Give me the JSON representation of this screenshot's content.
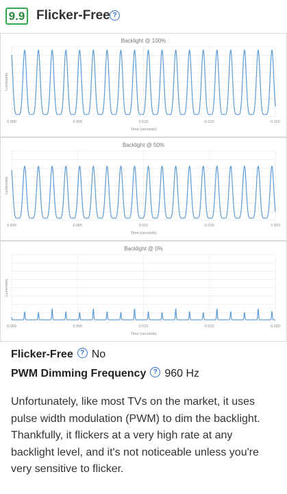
{
  "header": {
    "score": "9.9",
    "title": "Flicker-Free",
    "help_icon": "question-circle-icon"
  },
  "charts_common": {
    "xlabel": "Time (seconds)",
    "ylabel": "Luminosity",
    "x_ticks": [
      "0.000",
      "0.005",
      "0.010",
      "0.015",
      "0.020"
    ],
    "color": "#5b9bd5"
  },
  "chart_data": [
    {
      "type": "line",
      "title": "Backlight @ 100%",
      "xlabel": "Time (seconds)",
      "ylabel": "Luminosity",
      "xlim": [
        0,
        0.02
      ],
      "ylim": [
        0,
        1
      ],
      "series": [
        {
          "pulse_frequency_hz": 960,
          "peak": 0.95,
          "trough": 0.03,
          "shape": "wide-pulse"
        }
      ]
    },
    {
      "type": "line",
      "title": "Backlight @ 50%",
      "xlabel": "Time (seconds)",
      "ylabel": "Luminosity",
      "xlim": [
        0,
        0.02
      ],
      "ylim": [
        0,
        1
      ],
      "series": [
        {
          "pulse_frequency_hz": 960,
          "peak": 0.78,
          "trough": 0.03,
          "shape": "wide-pulse"
        }
      ]
    },
    {
      "type": "line",
      "title": "Backlight @ 0%",
      "xlabel": "Time (seconds)",
      "ylabel": "Luminosity",
      "xlim": [
        0,
        0.02
      ],
      "ylim": [
        0,
        1
      ],
      "series": [
        {
          "pulse_frequency_hz": 960,
          "peak": 0.18,
          "trough": 0.02,
          "shape": "narrow-spike"
        }
      ]
    }
  ],
  "fields": [
    {
      "label": "Flicker-Free",
      "value": "No"
    },
    {
      "label": "PWM Dimming Frequency",
      "value": "960 Hz"
    }
  ],
  "description": "Unfortunately, like most TVs on the market, it uses pulse width modulation (PWM) to dim the backlight. Thankfully, it flickers at a very high rate at any backlight level, and it's not noticeable unless you're very sensitive to flicker."
}
